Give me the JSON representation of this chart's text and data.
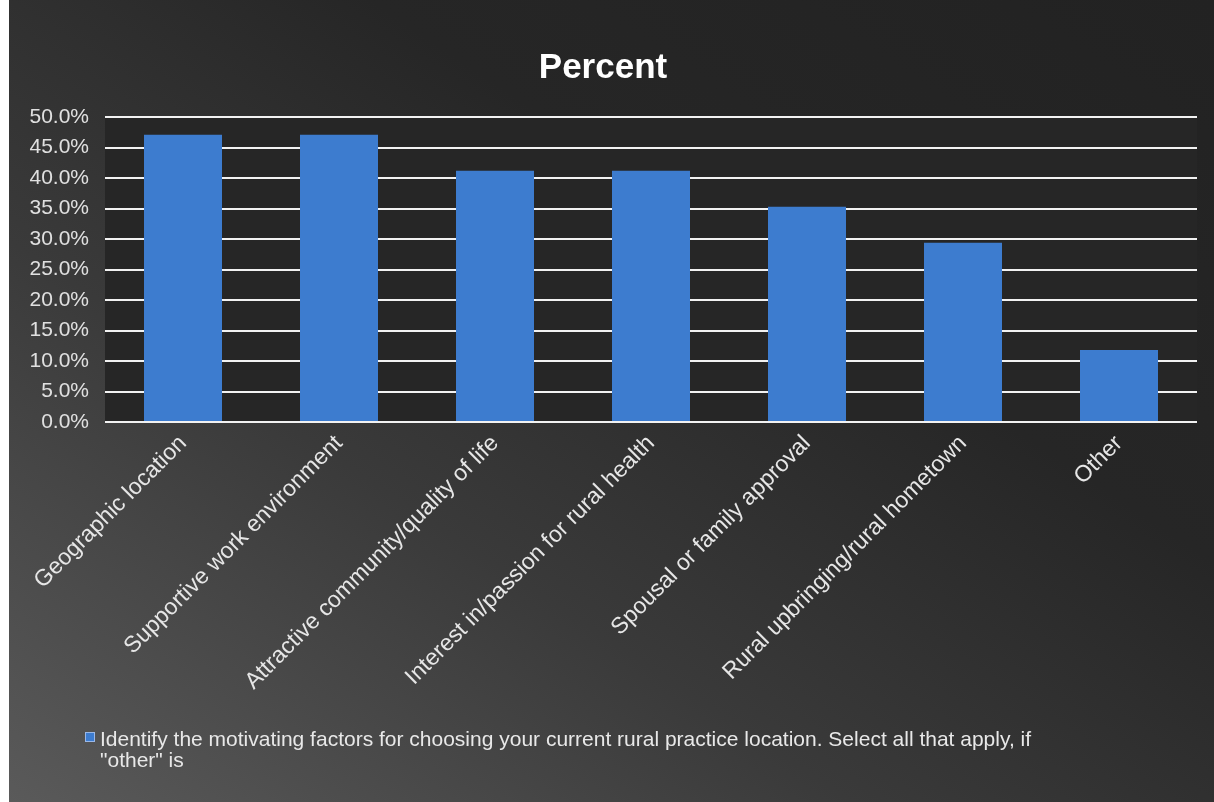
{
  "chart_data": {
    "type": "bar",
    "title": "Percent",
    "categories": [
      "Geographic location",
      "Supportive work environment",
      "Attractive community/quality of life",
      "Interest in/passion for rural health",
      "Spousal or family approval",
      "Rural upbringing/rural hometown",
      "Other"
    ],
    "series": [
      {
        "name": "Identify the motivating factors for choosing your current rural practice location. Select all that apply, if \"other\" is",
        "color": "#3d7ccf",
        "values": [
          47.1,
          47.1,
          41.2,
          41.2,
          35.3,
          29.4,
          11.8
        ]
      }
    ],
    "ylim": [
      0,
      50
    ],
    "yticks": [
      {
        "value": 0,
        "label": "0.0%"
      },
      {
        "value": 5,
        "label": "5.0%"
      },
      {
        "value": 10,
        "label": "10.0%"
      },
      {
        "value": 15,
        "label": "15.0%"
      },
      {
        "value": 20,
        "label": "20.0%"
      },
      {
        "value": 25,
        "label": "25.0%"
      },
      {
        "value": 30,
        "label": "30.0%"
      },
      {
        "value": 35,
        "label": "35.0%"
      },
      {
        "value": 40,
        "label": "40.0%"
      },
      {
        "value": 45,
        "label": "45.0%"
      },
      {
        "value": 50,
        "label": "50.0%"
      }
    ],
    "grid": "y",
    "legend": "bottom"
  }
}
